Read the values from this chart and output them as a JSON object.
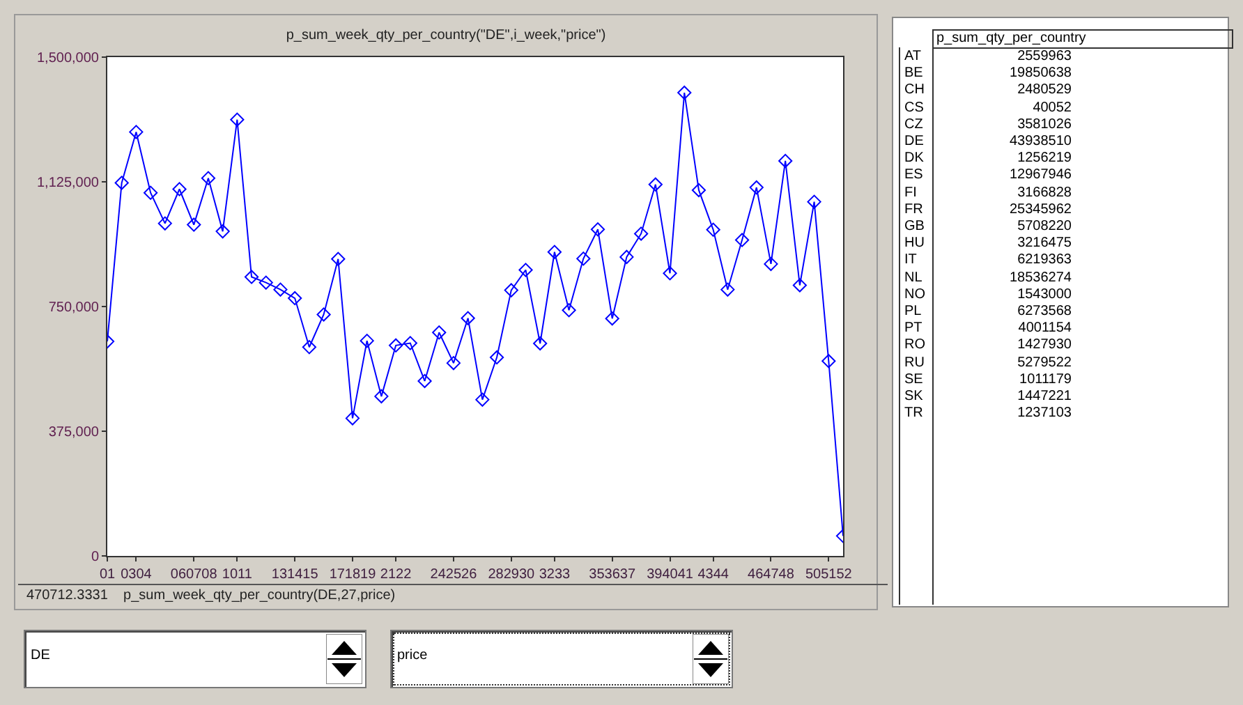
{
  "chart_data": [
    {
      "type": "line",
      "title": "p_sum_week_qty_per_country(\"DE\",i_week,\"price\")",
      "categories": [
        "01",
        null,
        "0304",
        null,
        null,
        null,
        "060708",
        null,
        null,
        "1011",
        null,
        null,
        null,
        "131415",
        null,
        null,
        null,
        "171819",
        null,
        null,
        "2122",
        null,
        null,
        null,
        "242526",
        null,
        null,
        null,
        "282930",
        null,
        null,
        "3233",
        null,
        null,
        null,
        "353637",
        null,
        null,
        null,
        "394041",
        null,
        null,
        "4344",
        null,
        null,
        null,
        "464748",
        null,
        null,
        null,
        "505152",
        null
      ],
      "series": [
        {
          "color": "#0000ff",
          "values": [
            645000,
            1122000,
            1275000,
            1092000,
            1000000,
            1103000,
            996000,
            1136000,
            976000,
            1312000,
            839000,
            822000,
            801000,
            775000,
            628000,
            726000,
            893000,
            414000,
            647000,
            480000,
            633000,
            640000,
            526000,
            672000,
            580000,
            715000,
            470000,
            597000,
            799000,
            860000,
            639000,
            914000,
            739000,
            894000,
            982000,
            714000,
            899000,
            969000,
            1117000,
            850000,
            1393000,
            1100000,
            981000,
            801000,
            950000,
            1108000,
            878000,
            1188000,
            814000,
            1065000,
            586000,
            60000
          ]
        }
      ],
      "ylim": [
        0,
        1500000
      ],
      "yticks": [
        {
          "value": 0,
          "label": "0"
        },
        {
          "value": 375000,
          "label": "375,000"
        },
        {
          "value": 750000,
          "label": "750,000"
        },
        {
          "value": 1125000,
          "label": "1,125,000"
        },
        {
          "value": 1500000,
          "label": "1,500,000"
        }
      ],
      "grid": false,
      "marker": "diamond",
      "line_style": "solid",
      "annotations": [
        "470712.3331    p_sum_week_qty_per_country(DE,27,price)",
        "DE",
        "price"
      ]
    },
    {
      "type": "other",
      "title": "p_sum_qty_per_country",
      "categories": [
        "AT",
        "BE",
        "CH",
        "CS",
        "CZ",
        "DE",
        "DK",
        "ES",
        "FI",
        "FR",
        "GB",
        "HU",
        "IT",
        "NL",
        "NO",
        "PL",
        "PT",
        "RO",
        "RU",
        "SE",
        "SK",
        "TR"
      ],
      "values": [
        2559963,
        19850638,
        2480529,
        40052,
        3581026,
        43938510,
        1256219,
        12967946,
        3166828,
        25345962,
        5708220,
        3216475,
        6219363,
        18536274,
        1543000,
        6273568,
        4001154,
        1427930,
        5279522,
        1011179,
        1447221,
        1237103
      ],
      "data_labels": true
    }
  ]
}
